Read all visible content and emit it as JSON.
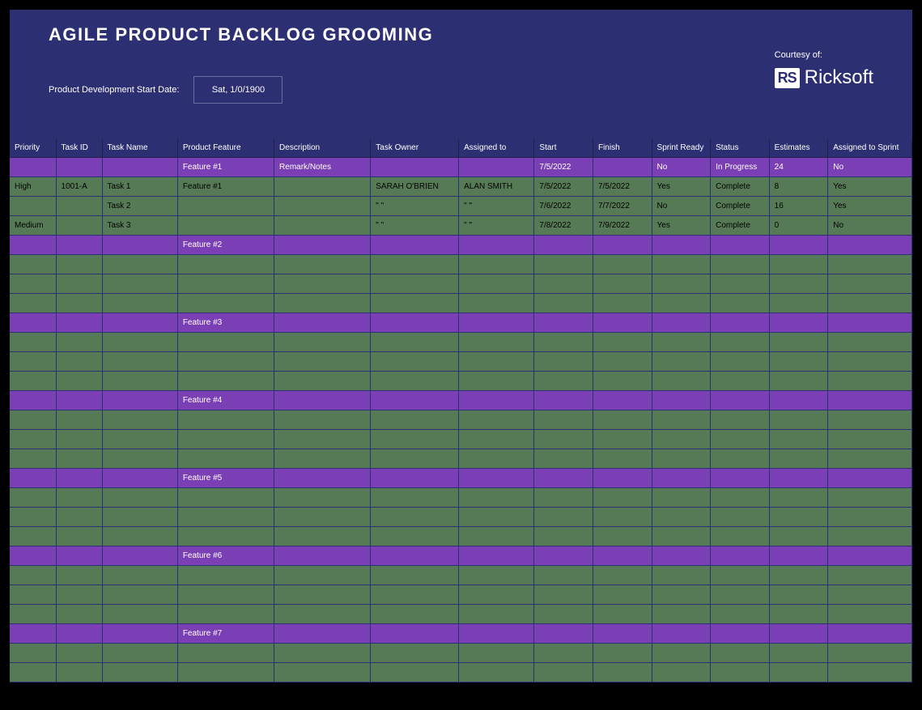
{
  "header": {
    "title": "AGILE PRODUCT BACKLOG GROOMING",
    "start_date_label": "Product Development Start Date:",
    "start_date_value": "Sat, 1/0/1900",
    "courtesy_label": "Courtesy of:",
    "logo_badge": "RS",
    "logo_text": "Ricksoft"
  },
  "columns": [
    "Priority",
    "Task ID",
    "Task Name",
    "Product Feature",
    "Description",
    "Task Owner",
    "Assigned to",
    "Start",
    "Finish",
    "Sprint Ready",
    "Status",
    "Estimates",
    "Assigned to Sprint"
  ],
  "colors": {
    "page_bg": "#000000",
    "header_bg": "#2d2f73",
    "header_text": "#ffffff",
    "purple_row": "#7a3fb5",
    "green_row": "#567a56",
    "grid_border": "#2d2f73"
  },
  "rows": [
    {
      "type": "purple",
      "cells": [
        "",
        "",
        "",
        "Feature #1",
        "Remark/Notes",
        "",
        "",
        "7/5/2022",
        "",
        "No",
        "In Progress",
        "24",
        "No"
      ]
    },
    {
      "type": "green",
      "cells": [
        "High",
        "1001-A",
        "Task 1",
        "Feature #1",
        "",
        "SARAH O'BRIEN",
        "ALAN SMITH",
        "7/5/2022",
        "7/5/2022",
        "Yes",
        "Complete",
        "8",
        "Yes"
      ]
    },
    {
      "type": "green",
      "cells": [
        "",
        "",
        "Task 2",
        "",
        "",
        "\" \"",
        "\" \"",
        "7/6/2022",
        "7/7/2022",
        "No",
        "Complete",
        "16",
        "Yes"
      ]
    },
    {
      "type": "green",
      "cells": [
        "Medium",
        "",
        "Task 3",
        "",
        "",
        "\" \"",
        "\" \"",
        "7/8/2022",
        "7/9/2022",
        "Yes",
        "Complete",
        "0",
        "No"
      ]
    },
    {
      "type": "purple",
      "cells": [
        "",
        "",
        "",
        "Feature #2",
        "",
        "",
        "",
        "",
        "",
        "",
        "",
        "",
        ""
      ]
    },
    {
      "type": "green",
      "cells": [
        "",
        "",
        "",
        "",
        "",
        "",
        "",
        "",
        "",
        "",
        "",
        "",
        ""
      ]
    },
    {
      "type": "green",
      "cells": [
        "",
        "",
        "",
        "",
        "",
        "",
        "",
        "",
        "",
        "",
        "",
        "",
        ""
      ]
    },
    {
      "type": "green",
      "cells": [
        "",
        "",
        "",
        "",
        "",
        "",
        "",
        "",
        "",
        "",
        "",
        "",
        ""
      ]
    },
    {
      "type": "purple",
      "cells": [
        "",
        "",
        "",
        "Feature #3",
        "",
        "",
        "",
        "",
        "",
        "",
        "",
        "",
        ""
      ]
    },
    {
      "type": "green",
      "cells": [
        "",
        "",
        "",
        "",
        "",
        "",
        "",
        "",
        "",
        "",
        "",
        "",
        ""
      ]
    },
    {
      "type": "green",
      "cells": [
        "",
        "",
        "",
        "",
        "",
        "",
        "",
        "",
        "",
        "",
        "",
        "",
        ""
      ]
    },
    {
      "type": "green",
      "cells": [
        "",
        "",
        "",
        "",
        "",
        "",
        "",
        "",
        "",
        "",
        "",
        "",
        ""
      ]
    },
    {
      "type": "purple",
      "cells": [
        "",
        "",
        "",
        "Feature #4",
        "",
        "",
        "",
        "",
        "",
        "",
        "",
        "",
        ""
      ]
    },
    {
      "type": "green",
      "cells": [
        "",
        "",
        "",
        "",
        "",
        "",
        "",
        "",
        "",
        "",
        "",
        "",
        ""
      ]
    },
    {
      "type": "green",
      "cells": [
        "",
        "",
        "",
        "",
        "",
        "",
        "",
        "",
        "",
        "",
        "",
        "",
        ""
      ]
    },
    {
      "type": "green",
      "cells": [
        "",
        "",
        "",
        "",
        "",
        "",
        "",
        "",
        "",
        "",
        "",
        "",
        ""
      ]
    },
    {
      "type": "purple",
      "cells": [
        "",
        "",
        "",
        "Feature #5",
        "",
        "",
        "",
        "",
        "",
        "",
        "",
        "",
        ""
      ]
    },
    {
      "type": "green",
      "cells": [
        "",
        "",
        "",
        "",
        "",
        "",
        "",
        "",
        "",
        "",
        "",
        "",
        ""
      ]
    },
    {
      "type": "green",
      "cells": [
        "",
        "",
        "",
        "",
        "",
        "",
        "",
        "",
        "",
        "",
        "",
        "",
        ""
      ]
    },
    {
      "type": "green",
      "cells": [
        "",
        "",
        "",
        "",
        "",
        "",
        "",
        "",
        "",
        "",
        "",
        "",
        ""
      ]
    },
    {
      "type": "purple",
      "cells": [
        "",
        "",
        "",
        "Feature #6",
        "",
        "",
        "",
        "",
        "",
        "",
        "",
        "",
        ""
      ]
    },
    {
      "type": "green",
      "cells": [
        "",
        "",
        "",
        "",
        "",
        "",
        "",
        "",
        "",
        "",
        "",
        "",
        ""
      ]
    },
    {
      "type": "green",
      "cells": [
        "",
        "",
        "",
        "",
        "",
        "",
        "",
        "",
        "",
        "",
        "",
        "",
        ""
      ]
    },
    {
      "type": "green",
      "cells": [
        "",
        "",
        "",
        "",
        "",
        "",
        "",
        "",
        "",
        "",
        "",
        "",
        ""
      ]
    },
    {
      "type": "purple",
      "cells": [
        "",
        "",
        "",
        "Feature #7",
        "",
        "",
        "",
        "",
        "",
        "",
        "",
        "",
        ""
      ]
    },
    {
      "type": "green",
      "cells": [
        "",
        "",
        "",
        "",
        "",
        "",
        "",
        "",
        "",
        "",
        "",
        "",
        ""
      ]
    },
    {
      "type": "green",
      "cells": [
        "",
        "",
        "",
        "",
        "",
        "",
        "",
        "",
        "",
        "",
        "",
        "",
        ""
      ]
    }
  ]
}
